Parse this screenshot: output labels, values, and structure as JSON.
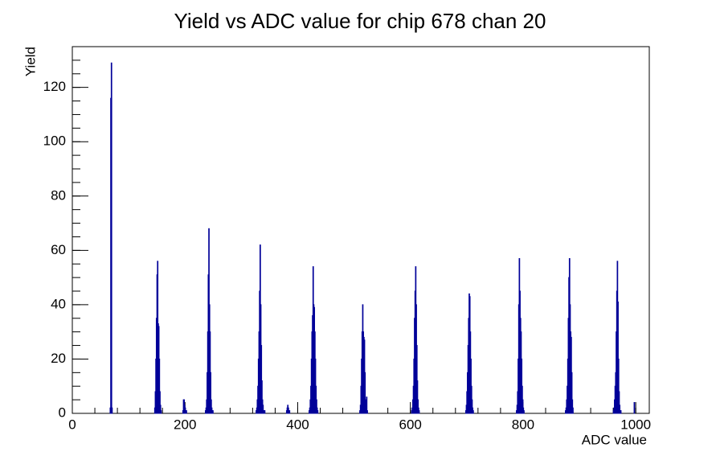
{
  "chart_data": {
    "type": "histogram",
    "title": "Yield vs ADC value for chip 678 chan 20",
    "x_label": "ADC value",
    "y_label": "Yield",
    "color": "#000099",
    "xlim": [
      0,
      1024
    ],
    "ylim": [
      0,
      135
    ],
    "xticks": [
      0,
      200,
      400,
      600,
      800,
      1000
    ],
    "yticks": [
      0,
      20,
      40,
      60,
      80,
      100,
      120
    ],
    "bins": [
      0,
      67,
      68,
      69,
      70,
      71,
      146,
      147,
      148,
      149,
      150,
      151,
      152,
      153,
      154,
      155,
      156,
      157,
      158,
      196,
      197,
      198,
      199,
      200,
      201,
      202,
      203,
      236,
      237,
      238,
      239,
      240,
      241,
      242,
      243,
      244,
      245,
      246,
      247,
      248,
      249,
      250,
      326,
      327,
      328,
      329,
      330,
      331,
      332,
      333,
      334,
      335,
      336,
      337,
      338,
      339,
      340,
      341,
      342,
      380,
      381,
      382,
      383,
      384,
      385,
      386,
      420,
      421,
      422,
      423,
      424,
      425,
      426,
      427,
      428,
      429,
      430,
      431,
      432,
      433,
      434,
      435,
      436,
      510,
      511,
      512,
      513,
      514,
      515,
      516,
      517,
      518,
      519,
      520,
      521,
      522,
      523,
      524,
      602,
      603,
      604,
      605,
      606,
      607,
      608,
      609,
      610,
      611,
      612,
      613,
      614,
      615,
      616,
      698,
      699,
      700,
      701,
      702,
      703,
      704,
      705,
      706,
      707,
      708,
      709,
      710,
      711,
      712,
      788,
      789,
      790,
      791,
      792,
      793,
      794,
      795,
      796,
      797,
      798,
      799,
      800,
      801,
      802,
      875,
      876,
      877,
      878,
      879,
      880,
      881,
      882,
      883,
      884,
      885,
      886,
      887,
      888,
      889,
      960,
      961,
      962,
      963,
      964,
      965,
      966,
      967,
      968,
      969,
      970,
      971,
      972,
      973,
      974,
      997,
      998,
      1024
    ],
    "values": [
      0,
      2,
      116,
      129,
      2,
      0,
      2,
      8,
      20,
      35,
      51,
      56,
      33,
      32,
      20,
      8,
      3,
      1,
      0,
      1,
      5,
      5,
      3,
      2,
      1,
      1,
      0,
      1,
      2,
      5,
      15,
      30,
      51,
      68,
      40,
      30,
      15,
      5,
      2,
      1,
      1,
      0,
      1,
      2,
      5,
      10,
      20,
      30,
      45,
      62,
      40,
      25,
      12,
      5,
      3,
      1,
      1,
      1,
      0,
      1,
      2,
      3,
      2,
      1,
      1,
      0,
      1,
      2,
      5,
      10,
      20,
      30,
      36,
      54,
      40,
      39,
      30,
      20,
      10,
      5,
      2,
      1,
      0,
      1,
      3,
      10,
      20,
      30,
      40,
      30,
      28,
      27,
      15,
      5,
      2,
      6,
      1,
      0,
      1,
      2,
      5,
      10,
      20,
      35,
      45,
      54,
      40,
      25,
      12,
      5,
      2,
      1,
      0,
      1,
      3,
      8,
      15,
      25,
      35,
      44,
      43,
      30,
      20,
      10,
      5,
      2,
      1,
      0,
      1,
      3,
      8,
      20,
      40,
      57,
      45,
      35,
      30,
      20,
      10,
      5,
      2,
      1,
      0,
      1,
      2,
      5,
      10,
      20,
      35,
      50,
      57,
      40,
      30,
      28,
      15,
      5,
      2,
      0,
      1,
      2,
      5,
      10,
      15,
      30,
      45,
      56,
      41,
      20,
      8,
      3,
      1,
      1,
      0,
      4,
      0
    ]
  }
}
